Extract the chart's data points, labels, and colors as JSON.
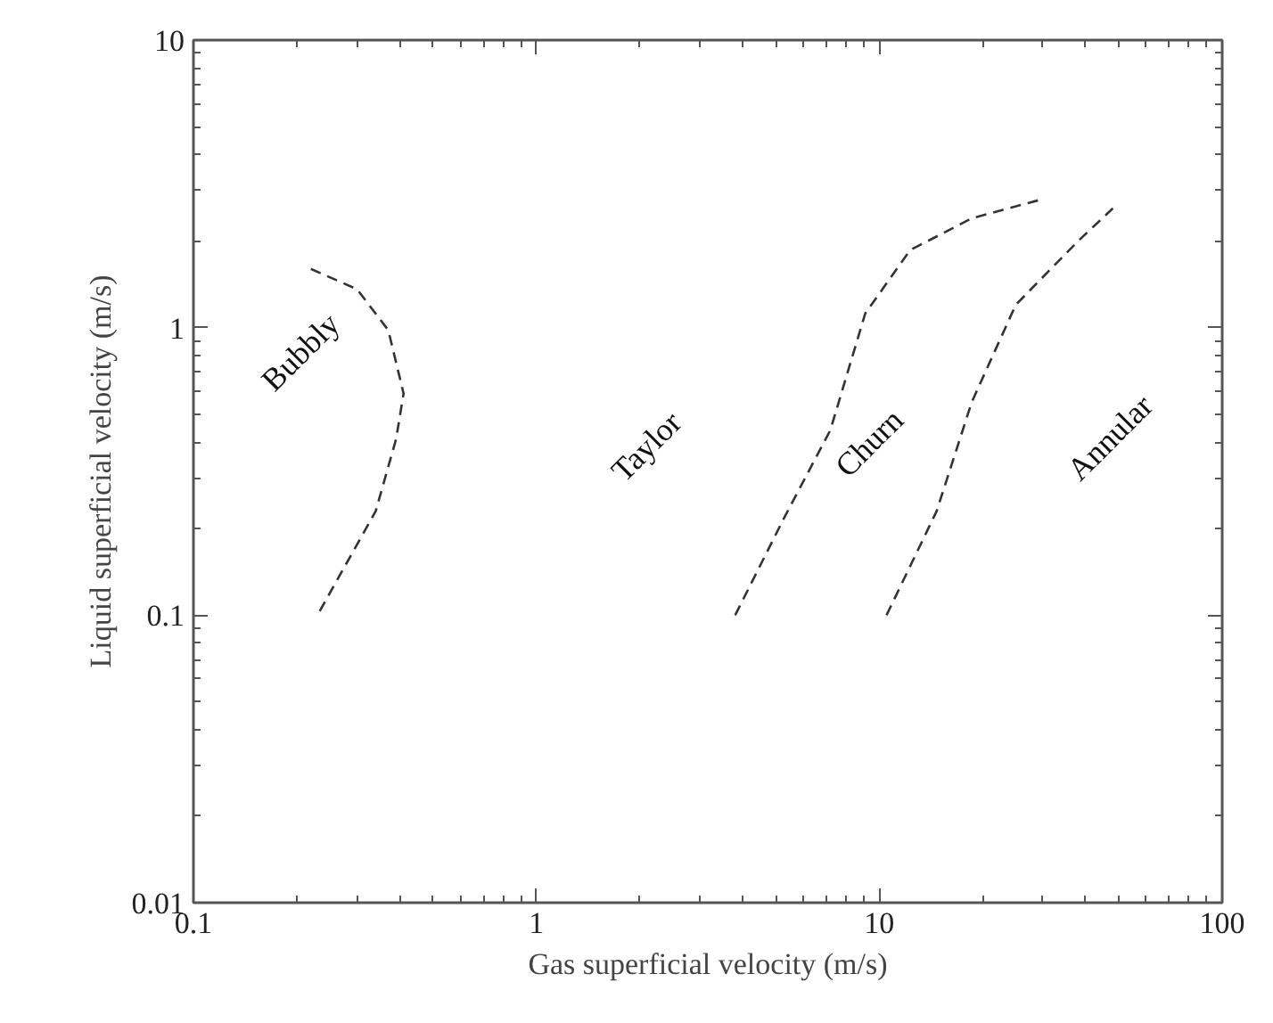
{
  "chart_data": {
    "type": "line",
    "xlabel": "Gas superficial velocity (m/s)",
    "ylabel": "Liquid superficial velocity (m/s)",
    "log": "xy",
    "xlim": [
      0.1,
      100
    ],
    "ylim": [
      0.01,
      10
    ],
    "xticks": [
      0.1,
      1,
      10,
      100
    ],
    "yticks": [
      0.01,
      0.1,
      1,
      10
    ],
    "grid": false,
    "marker": "none",
    "line_style": "dashed",
    "series": [
      {
        "color": "#333333",
        "x": [
          0.22,
          0.3,
          0.37,
          0.41,
          0.39,
          0.34,
          0.23
        ],
        "values": [
          1.6,
          1.36,
          0.98,
          0.59,
          0.41,
          0.23,
          0.1
        ]
      },
      {
        "color": "#333333",
        "x": [
          3.8,
          5.3,
          7.2,
          9.1,
          12.3,
          18.6,
          30
        ],
        "values": [
          0.1,
          0.22,
          0.44,
          1.12,
          1.86,
          2.4,
          2.8
        ]
      },
      {
        "color": "#333333",
        "x": [
          10.5,
          14.7,
          18.6,
          25,
          38,
          48
        ],
        "values": [
          0.1,
          0.23,
          0.55,
          1.2,
          2.0,
          2.6
        ]
      }
    ],
    "annotations": [
      "Bubbly",
      "Taylor",
      "Churn",
      "Annular"
    ]
  }
}
